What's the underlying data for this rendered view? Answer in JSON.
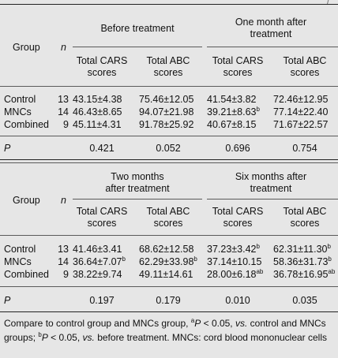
{
  "header_corner": "/",
  "panels": [
    {
      "group_label": "Group",
      "n_label": "n",
      "period1": {
        "title": "Before treatment",
        "line2": ""
      },
      "period2": {
        "title": "One month after",
        "line2": "treatment"
      },
      "col1": [
        "Total CARS",
        "scores"
      ],
      "col2": [
        "Total ABC",
        "scores"
      ],
      "col3": [
        "Total CARS",
        "scores"
      ],
      "col4": [
        "Total ABC",
        "scores"
      ],
      "rows": [
        {
          "group": "Control",
          "n": "13",
          "v1": "43.15±4.38",
          "v1s": "",
          "v2": "75.46±12.05",
          "v2s": "",
          "v3": "41.54±3.82",
          "v3s": "",
          "v4": "72.46±12.95",
          "v4s": ""
        },
        {
          "group": "MNCs",
          "n": "14",
          "v1": "46.43±8.65",
          "v1s": "",
          "v2": "94.07±21.98",
          "v2s": "",
          "v3": "39.21±8.63",
          "v3s": "b",
          "v4": "77.14±22.40",
          "v4s": ""
        },
        {
          "group": "Combined",
          "n": "9",
          "v1": "45.11±4.31",
          "v1s": "",
          "v2": "91.78±25.92",
          "v2s": "",
          "v3": "40.67±8.15",
          "v3s": "",
          "v4": "71.67±22.57",
          "v4s": ""
        }
      ],
      "p_label": "P",
      "p_values": [
        "0.421",
        "0.052",
        "0.696",
        "0.754"
      ]
    },
    {
      "group_label": "Group",
      "n_label": "n",
      "period1": {
        "title": "Two months",
        "line2": "after treatment"
      },
      "period2": {
        "title": "Six months after",
        "line2": "treatment"
      },
      "col1": [
        "Total CARS",
        "scores"
      ],
      "col2": [
        "Total ABC",
        "scores"
      ],
      "col3": [
        "Total CARS",
        "scores"
      ],
      "col4": [
        "Total ABC",
        "scores"
      ],
      "rows": [
        {
          "group": "Control",
          "n": "13",
          "v1": "41.46±3.41",
          "v1s": "",
          "v2": "68.62±12.58",
          "v2s": "",
          "v3": "37.23±3.42",
          "v3s": "b",
          "v4": "62.31±11.30",
          "v4s": "b"
        },
        {
          "group": "MNCs",
          "n": "14",
          "v1": "36.64±7.07",
          "v1s": "b",
          "v2": "62.29±33.98",
          "v2s": "b",
          "v3": "37.14±10.15",
          "v3s": "",
          "v4": "58.36±31.73",
          "v4s": "b"
        },
        {
          "group": "Combined",
          "n": "9",
          "v1": "38.22±9.74",
          "v1s": "",
          "v2": "49.11±14.61",
          "v2s": "",
          "v3": "28.00±6.18",
          "v3s": "ab",
          "v4": "36.78±16.95",
          "v4s": "ab"
        }
      ],
      "p_label": "P",
      "p_values": [
        "0.197",
        "0.179",
        "0.010",
        "0.035"
      ]
    }
  ],
  "footnote": {
    "part1": "Compare to control group and MNCs group, ",
    "sup_a": "a",
    "p1": "P",
    "part2": " < 0.05, ",
    "vs1": "vs.",
    "part3": " control and MNCs groups; ",
    "sup_b": "b",
    "p2": "P",
    "part4": " < 0.05, ",
    "vs2": "vs.",
    "part5": " before treatment. MNCs: cord blood mononuclear cells"
  }
}
